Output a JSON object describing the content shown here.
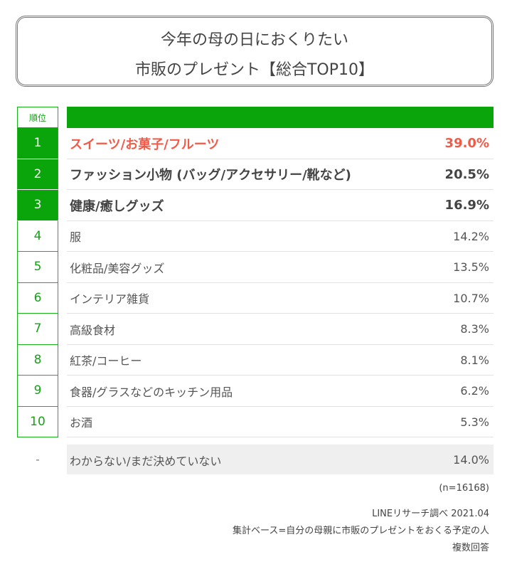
{
  "header": {
    "title": [
      "今年の母の日におくりたい",
      "市販のプレゼント【総合TOP10】"
    ]
  },
  "table": {
    "rank_header": "順位",
    "rows": [
      [
        "1",
        "スイーツ/お菓子/フルーツ",
        "39.0%"
      ],
      [
        "2",
        "ファッション小物 (バッグ/アクセサリー/靴など)",
        "20.5%"
      ],
      [
        "3",
        "健康/癒しグッズ",
        "16.9%"
      ],
      [
        "4",
        "服",
        "14.2%"
      ],
      [
        "5",
        "化粧品/美容グッズ",
        "13.5%"
      ],
      [
        "6",
        "インテリア雑貨",
        "10.7%"
      ],
      [
        "7",
        "高級食材",
        "8.3%"
      ],
      [
        "8",
        "紅茶/コーヒー",
        "8.1%"
      ],
      [
        "9",
        "食器/グラスなどのキッチン用品",
        "6.2%"
      ],
      [
        "10",
        "お酒",
        "5.3%"
      ]
    ],
    "other": [
      "-",
      "わからない/まだ決めていない",
      "14.0%"
    ]
  },
  "footer": {
    "notes": [
      "(n=16168)",
      "LINEリサーチ調べ 2021.04",
      "集計ベース=自分の母親に市販のプレゼントをおくる予定の人",
      "複数回答"
    ]
  }
}
